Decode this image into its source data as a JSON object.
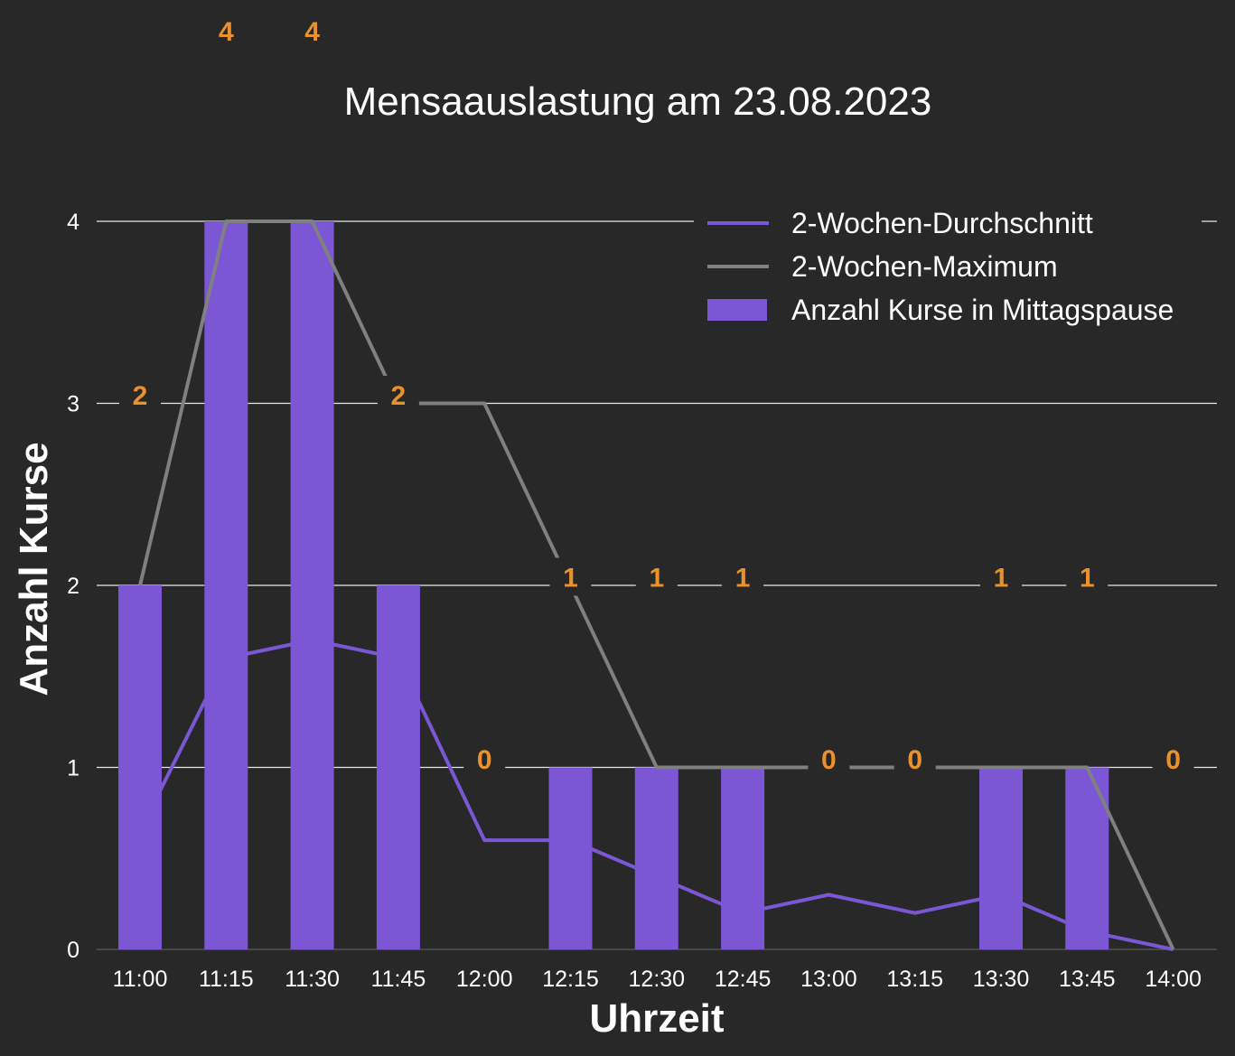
{
  "chart_data": {
    "type": "bar",
    "title": "Mensaauslastung am 23.08.2023",
    "xlabel": "Uhrzeit",
    "ylabel": "Anzahl Kurse",
    "categories": [
      "11:00",
      "11:15",
      "11:30",
      "11:45",
      "12:00",
      "12:15",
      "12:30",
      "12:45",
      "13:00",
      "13:15",
      "13:30",
      "13:45",
      "14:00"
    ],
    "ylim": [
      0,
      4
    ],
    "yticks": [
      0,
      1,
      2,
      3,
      4
    ],
    "grid": true,
    "legend_position": "top-right",
    "series": [
      {
        "name": "Anzahl Kurse in Mittagspause",
        "type": "bar",
        "color": "#7b57d6",
        "values": [
          2,
          4,
          4,
          2,
          0,
          1,
          1,
          1,
          0,
          0,
          1,
          1,
          0
        ]
      },
      {
        "name": "2-Wochen-Durchschnitt",
        "type": "line",
        "color": "#7b57d6",
        "values": [
          0.65,
          1.6,
          1.7,
          1.6,
          0.6,
          0.6,
          0.4,
          0.2,
          0.3,
          0.2,
          0.3,
          0.1,
          0.0
        ]
      },
      {
        "name": "2-Wochen-Maximum",
        "type": "line",
        "color": "#808080",
        "values": [
          2,
          4,
          4,
          3,
          3,
          2,
          1,
          1,
          1,
          1,
          1,
          1,
          0
        ]
      }
    ],
    "data_labels": [
      "2",
      "4",
      "4",
      "2",
      "0",
      "1",
      "1",
      "1",
      "0",
      "0",
      "1",
      "1",
      "0"
    ],
    "data_label_color": "#e8912d",
    "legend_order": [
      "2-Wochen-Durchschnitt",
      "2-Wochen-Maximum",
      "Anzahl Kurse in Mittagspause"
    ]
  }
}
